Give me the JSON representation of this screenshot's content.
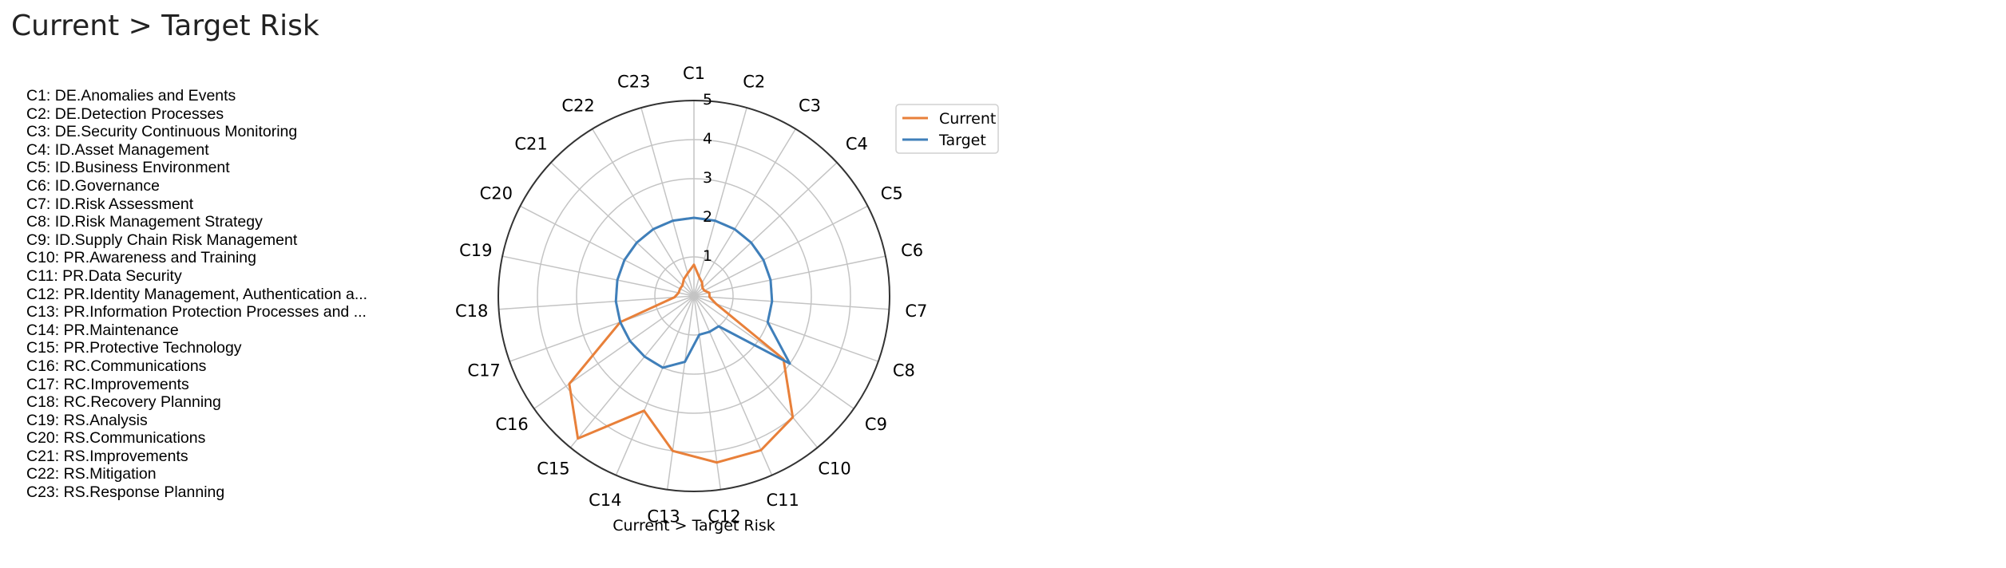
{
  "page": {
    "title": "Current > Target Risk"
  },
  "categories": [
    "C1: DE.Anomalies and Events",
    "C2: DE.Detection Processes",
    "C3: DE.Security Continuous Monitoring",
    "C4: ID.Asset Management",
    "C5: ID.Business Environment",
    "C6: ID.Governance",
    "C7: ID.Risk Assessment",
    "C8: ID.Risk Management Strategy",
    "C9: ID.Supply Chain Risk Management",
    "C10: PR.Awareness and Training",
    "C11: PR.Data Security",
    "C12: PR.Identity Management, Authentication a...",
    "C13: PR.Information Protection Processes and ...",
    "C14: PR.Maintenance",
    "C15: PR.Protective Technology",
    "C16: RC.Communications",
    "C17: RC.Improvements",
    "C18: RC.Recovery Planning",
    "C19: RS.Analysis",
    "C20: RS.Communications",
    "C21: RS.Improvements",
    "C22: RS.Mitigation",
    "C23: RS.Response Planning"
  ],
  "chart_data": {
    "type": "radar",
    "title": "",
    "xlabel": "Current > Target Risk",
    "axes": [
      "C1",
      "C2",
      "C3",
      "C4",
      "C5",
      "C6",
      "C7",
      "C8",
      "C9",
      "C10",
      "C11",
      "C12",
      "C13",
      "C14",
      "C15",
      "C16",
      "C17",
      "C18",
      "C19",
      "C20",
      "C21",
      "C22",
      "C23"
    ],
    "rlim": [
      0,
      5
    ],
    "rticks": [
      "1",
      "2",
      "3",
      "4",
      "5"
    ],
    "grid": true,
    "legend_position": "top-right",
    "series": [
      {
        "name": "Current",
        "color": "#e8803a",
        "values": [
          0.8,
          0.5,
          0.4,
          0.3,
          0.3,
          0.4,
          0.4,
          0.6,
          2.8,
          4.0,
          4.3,
          4.3,
          4.0,
          3.2,
          4.7,
          3.9,
          2.0,
          0.5,
          0.4,
          0.4,
          0.4,
          0.5,
          0.6
        ]
      },
      {
        "name": "Target",
        "color": "#3f7fba",
        "values": [
          2.0,
          2.0,
          2.0,
          2.0,
          2.0,
          2.0,
          2.0,
          2.0,
          3.0,
          1.0,
          1.0,
          1.0,
          1.7,
          2.0,
          2.0,
          2.0,
          2.0,
          2.0,
          2.0,
          2.0,
          2.0,
          2.0,
          2.0
        ]
      }
    ]
  }
}
